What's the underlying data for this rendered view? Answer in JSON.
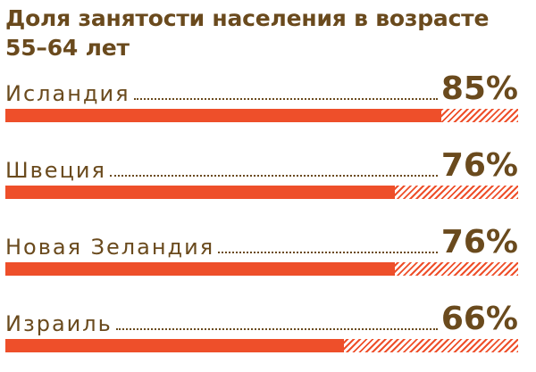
{
  "chart_data": {
    "type": "bar",
    "orientation": "horizontal",
    "title": "Доля занятости населения в возрасте 55–64 лет",
    "categories": [
      "Исландия",
      "Швеция",
      "Новая Зеландия",
      "Израиль"
    ],
    "values": [
      85,
      76,
      76,
      66
    ],
    "value_labels": [
      "85%",
      "76%",
      "76%",
      "66%"
    ],
    "xlim": [
      0,
      100
    ],
    "bar_color": "#ee4f2a",
    "text_color": "#6a4a1d"
  }
}
